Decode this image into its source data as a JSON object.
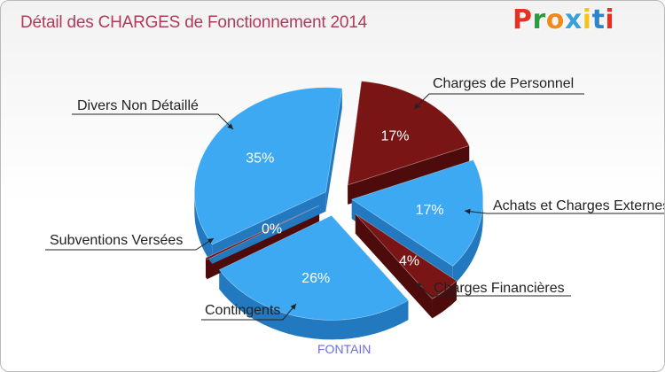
{
  "title": "Détail des CHARGES de Fonctionnement 2014",
  "logo": {
    "text": "Proxiti",
    "letter_colors": [
      "#e63222",
      "#2a9c3c",
      "#f08a1c",
      "#3aa0dc",
      "#f5c31c",
      "#2e86c8",
      "#e63222"
    ]
  },
  "commune": "FONTAIN",
  "colors": {
    "blue": "#3da9f2",
    "blue_side": "#2379c0",
    "red": "#7a1515",
    "red_side": "#4e0b0b"
  },
  "chart_data": {
    "type": "pie",
    "style": "3d-exploded",
    "slices": [
      {
        "label": "Charges de Personnel",
        "value": 17,
        "value_label": "17%",
        "color": "red"
      },
      {
        "label": "Achats et Charges Externes",
        "value": 17,
        "value_label": "17%",
        "color": "blue"
      },
      {
        "label": "Charges Financières",
        "value": 4,
        "value_label": "4%",
        "color": "red"
      },
      {
        "label": "Contingents",
        "value": 26,
        "value_label": "26%",
        "color": "blue"
      },
      {
        "label": "Subventions Versées",
        "value": 0,
        "value_label": "0%",
        "color": "red"
      },
      {
        "label": "Divers Non Détaillé",
        "value": 35,
        "value_label": "35%",
        "color": "blue"
      }
    ]
  }
}
